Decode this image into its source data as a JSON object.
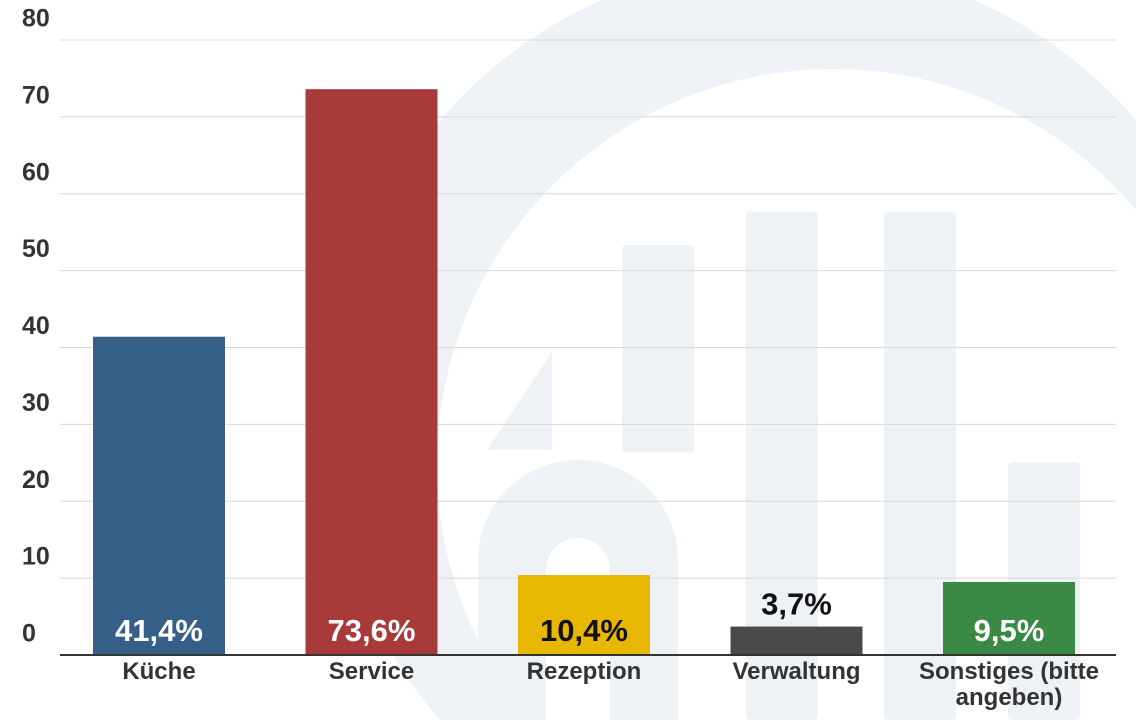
{
  "chart_data": {
    "type": "bar",
    "categories": [
      "Küche",
      "Service",
      "Rezeption",
      "Verwaltung",
      "Sonstiges (bitte angeben)"
    ],
    "values": [
      41.4,
      73.6,
      10.4,
      3.7,
      9.5
    ],
    "value_labels": [
      "41,4%",
      "73,6%",
      "10,4%",
      "3,7%",
      "9,5%"
    ],
    "colors": [
      "#365f87",
      "#a83a3a",
      "#e8b800",
      "#4a4a4a",
      "#3a8a46"
    ],
    "value_label_colors": [
      "#ffffff",
      "#ffffff",
      "#111111",
      "#111111",
      "#ffffff"
    ],
    "ylim": [
      0,
      80
    ],
    "yticks": [
      0,
      10,
      20,
      30,
      40,
      50,
      60,
      70,
      80
    ],
    "grid": true
  }
}
